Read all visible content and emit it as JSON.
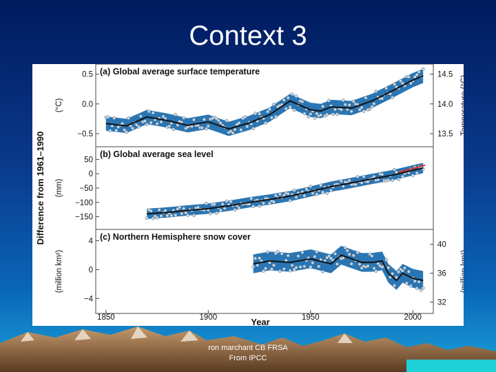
{
  "slide": {
    "title": "Context 3",
    "footer_line1": "ron marchant CB FRSA",
    "footer_line2": "From IPCC"
  },
  "colors": {
    "band": "#1f6fb0",
    "smooth": "#111111",
    "points": "#bfd7ee",
    "recent_line": "#d0302f"
  },
  "chart_data": [
    {
      "type": "line",
      "title": "(a) Global average surface temperature",
      "ylabel": "(°C)",
      "ylabel_right": "Temperature (°C)",
      "left_ticks": [
        "0.5",
        "0.0",
        "−0.5"
      ],
      "left_tick_values": [
        0.5,
        0.0,
        -0.5
      ],
      "right_ticks": [
        "14.5",
        "14.0",
        "13.5"
      ],
      "right_tick_values": [
        0.5,
        0.0,
        -0.5
      ],
      "ylim": [
        -0.65,
        0.6
      ],
      "band_halfwidth": 0.12,
      "x": [
        1850,
        1860,
        1870,
        1880,
        1890,
        1900,
        1910,
        1920,
        1930,
        1940,
        1950,
        1955,
        1960,
        1970,
        1980,
        1990,
        2000,
        2005
      ],
      "smooth": [
        -0.33,
        -0.37,
        -0.22,
        -0.28,
        -0.36,
        -0.3,
        -0.42,
        -0.32,
        -0.18,
        0.05,
        -0.1,
        -0.12,
        -0.05,
        -0.07,
        0.05,
        0.22,
        0.4,
        0.47
      ]
    },
    {
      "type": "line",
      "title": "(b) Global average sea level",
      "ylabel": "(mm)",
      "left_ticks": [
        "50",
        "0",
        "−50",
        "−100",
        "−150"
      ],
      "left_tick_values": [
        50,
        0,
        -50,
        -100,
        -150
      ],
      "ylim": [
        -180,
        80
      ],
      "band_halfwidth": 18,
      "x": [
        1870,
        1880,
        1890,
        1900,
        1910,
        1920,
        1930,
        1940,
        1950,
        1960,
        1970,
        1980,
        1990,
        2000,
        2005
      ],
      "smooth": [
        -140,
        -135,
        -128,
        -122,
        -112,
        -100,
        -90,
        -78,
        -62,
        -45,
        -32,
        -18,
        -5,
        12,
        20
      ],
      "recent": {
        "x": [
          1993,
          2006
        ],
        "y": [
          5,
          30
        ]
      }
    },
    {
      "type": "line",
      "title": "(c) Northern Hemisphere snow cover",
      "ylabel": "(million km²)",
      "ylabel_right": "(million km²)",
      "left_ticks": [
        "4",
        "0",
        "−4"
      ],
      "left_tick_values": [
        4,
        0,
        -4
      ],
      "right_ticks": [
        "40",
        "36",
        "32"
      ],
      "right_tick_values": [
        3.5,
        -0.5,
        -4.5
      ],
      "ylim": [
        -5.5,
        5.0
      ],
      "band_halfwidth": 1.3,
      "x": [
        1922,
        1930,
        1940,
        1950,
        1960,
        1965,
        1970,
        1975,
        1980,
        1985,
        1988,
        1992,
        1995,
        2000,
        2005
      ],
      "smooth": [
        0.8,
        1.2,
        1.0,
        1.5,
        0.8,
        2.0,
        1.5,
        1.0,
        1.0,
        1.2,
        -0.5,
        -1.5,
        -0.5,
        -1.2,
        -1.5
      ]
    }
  ],
  "x_axis": {
    "label": "Year",
    "ticks": [
      "1850",
      "1900",
      "1950",
      "2000"
    ],
    "tick_values": [
      1850,
      1900,
      1950,
      2000
    ],
    "xlim": [
      1845,
      2010
    ]
  },
  "shared_ylabel": "Difference from 1961–1990"
}
